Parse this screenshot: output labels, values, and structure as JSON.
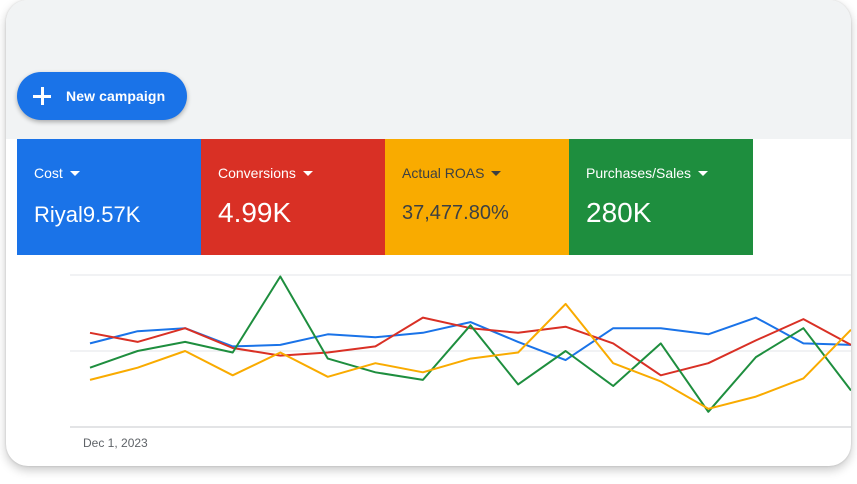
{
  "toolbar": {
    "new_campaign_label": "New campaign",
    "new_campaign_icon": "plus-icon"
  },
  "metrics": [
    {
      "label": "Cost",
      "value": "Riyal9.57K",
      "color": "#1a73e8",
      "text_color": "#ffffff",
      "value_size": "22"
    },
    {
      "label": "Conversions",
      "value": "4.99K",
      "color": "#d93025",
      "text_color": "#ffffff",
      "value_size": "28"
    },
    {
      "label": "Actual ROAS",
      "value": "37,477.80%",
      "color": "#f9ab00",
      "text_color": "#3c4043",
      "value_size": "20"
    },
    {
      "label": "Purchases/Sales",
      "value": "280K",
      "color": "#1e8e3e",
      "text_color": "#ffffff",
      "value_size": "28"
    }
  ],
  "chart": {
    "x_start_label": "Dec 1, 2023"
  },
  "chart_data": {
    "type": "line",
    "x_tick_labels": [
      "Dec 1, 2023"
    ],
    "ylim": [
      0,
      100
    ],
    "grid": true,
    "series": [
      {
        "color": "#1a73e8",
        "values": [
          55,
          63,
          65,
          53,
          54,
          61,
          59,
          62,
          69,
          56,
          44,
          65,
          65,
          61,
          72,
          55,
          54
        ]
      },
      {
        "color": "#d93025",
        "values": [
          62,
          56,
          65,
          52,
          47,
          49,
          53,
          72,
          65,
          62,
          66,
          55,
          34,
          42,
          57,
          71,
          54
        ]
      },
      {
        "color": "#1e8e3e",
        "values": [
          39,
          50,
          56,
          49,
          99,
          45,
          36,
          31,
          67,
          28,
          50,
          27,
          55,
          10,
          46,
          65,
          24
        ]
      },
      {
        "color": "#f9ab00",
        "values": [
          31,
          39,
          50,
          34,
          49,
          33,
          42,
          36,
          45,
          49,
          81,
          42,
          30,
          12,
          20,
          32,
          64
        ]
      }
    ]
  }
}
